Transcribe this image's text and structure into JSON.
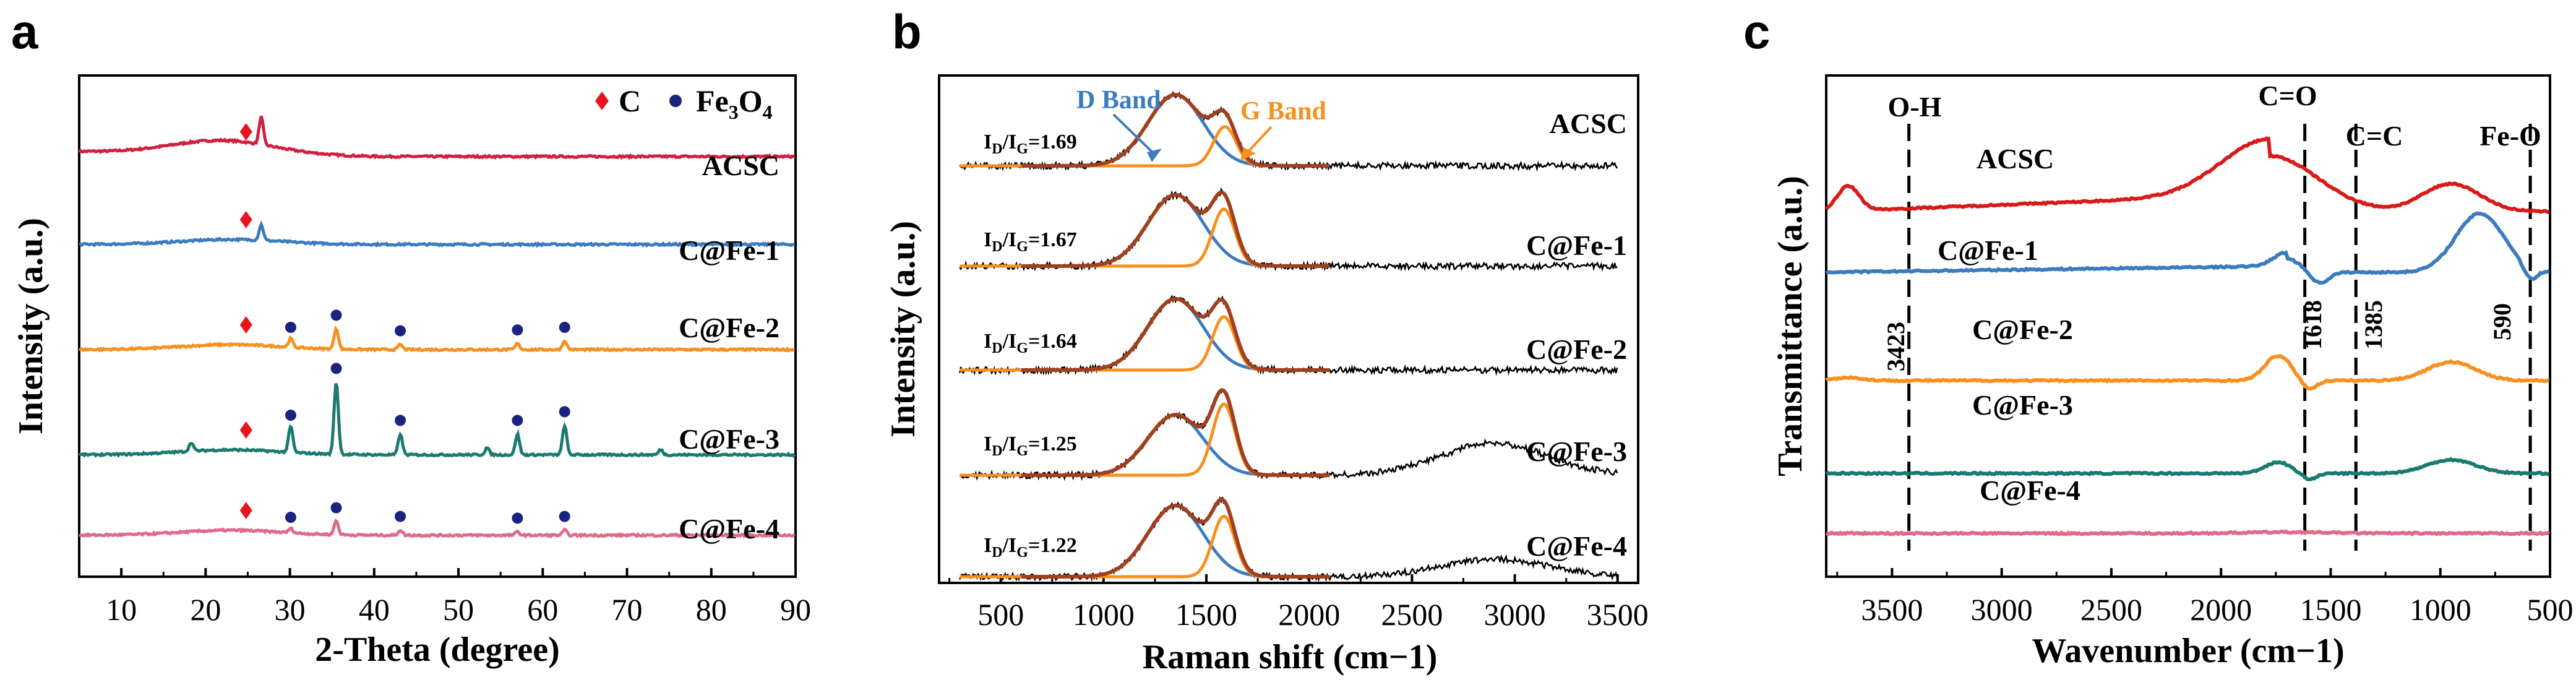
{
  "chart_data": [
    {
      "panel": "a",
      "type": "line",
      "xlabel": "2-Theta (degree)",
      "ylabel": "Intensity (a.u.)",
      "xlim": [
        5,
        90
      ],
      "xticks": [
        10,
        20,
        30,
        40,
        50,
        60,
        70,
        80,
        90
      ],
      "legend": [
        {
          "label": "C",
          "marker": "diamond",
          "color": "#e8141c"
        },
        {
          "label_main": "Fe",
          "label_sub1": "3",
          "label_mid": "O",
          "label_sub2": "4",
          "marker": "circle",
          "color": "#1a237e"
        }
      ],
      "series": [
        {
          "name": "ACSC",
          "color": "#d0203f",
          "hump": 24,
          "sharp": [
            [
              26.6,
              1.6
            ]
          ],
          "c_marks": [
            24.8
          ],
          "fe_marks": []
        },
        {
          "name": "C@Fe-1",
          "color": "#3b7bbf",
          "hump": 24,
          "sharp": [
            [
              26.6,
              0.9
            ]
          ],
          "c_marks": [
            24.8
          ],
          "fe_marks": []
        },
        {
          "name": "C@Fe-2",
          "color": "#f7901e",
          "hump": 24,
          "sharp": [
            [
              30.1,
              0.5
            ],
            [
              35.5,
              1.2
            ],
            [
              43.1,
              0.3
            ],
            [
              57.0,
              0.35
            ],
            [
              62.6,
              0.5
            ]
          ],
          "c_marks": [
            24.8
          ],
          "fe_marks": [
            30.1,
            35.5,
            43.1,
            57.0,
            62.6
          ]
        },
        {
          "name": "C@Fe-3",
          "color": "#1a7a70",
          "hump": 24,
          "sharp": [
            [
              18.3,
              0.5
            ],
            [
              30.1,
              1.5
            ],
            [
              35.5,
              4.2
            ],
            [
              43.1,
              1.2
            ],
            [
              53.4,
              0.4
            ],
            [
              57.0,
              1.2
            ],
            [
              62.6,
              1.7
            ],
            [
              74.0,
              0.3
            ]
          ],
          "c_marks": [
            24.8
          ],
          "fe_marks": [
            30.1,
            35.5,
            43.1,
            57.0,
            62.6
          ]
        },
        {
          "name": "C@Fe-4",
          "color": "#e06a87",
          "hump": 24,
          "sharp": [
            [
              30.1,
              0.25
            ],
            [
              35.5,
              0.8
            ],
            [
              43.1,
              0.3
            ],
            [
              57.0,
              0.2
            ],
            [
              62.6,
              0.3
            ]
          ],
          "c_marks": [
            24.8
          ],
          "fe_marks": [
            30.1,
            35.5,
            43.1,
            57.0,
            62.6
          ]
        }
      ]
    },
    {
      "panel": "b",
      "type": "line",
      "xlabel": "Raman shift (cm−1)",
      "ylabel": "Intensity (a.u.)",
      "xlim": [
        200,
        3600
      ],
      "xticks": [
        500,
        1000,
        1500,
        2000,
        2500,
        3000,
        3500
      ],
      "band_labels": {
        "d": "D Band",
        "g": "G Band",
        "d_color": "#3b7bbf",
        "g_color": "#f7901e"
      },
      "ratio_prefix": "I",
      "ratio_sub_d": "D",
      "ratio_sub_g": "G",
      "fit_colors": {
        "d": "#3b7bbf",
        "g": "#f7901e",
        "sum": "#a0401f",
        "raw": "#000000"
      },
      "series": [
        {
          "name": "ACSC",
          "ratio": "=1.69",
          "d_center": 1350,
          "d_height": 1.0,
          "g_center": 1590,
          "g_height": 0.55,
          "broad": 0
        },
        {
          "name": "C@Fe-1",
          "ratio": "=1.67",
          "d_center": 1350,
          "d_height": 1.0,
          "g_center": 1585,
          "g_height": 0.8,
          "broad": 0
        },
        {
          "name": "C@Fe-2",
          "ratio": "=1.64",
          "d_center": 1350,
          "d_height": 1.0,
          "g_center": 1585,
          "g_height": 0.75,
          "broad": 0
        },
        {
          "name": "C@Fe-3",
          "ratio": "=1.25",
          "d_center": 1350,
          "d_height": 0.85,
          "g_center": 1585,
          "g_height": 1.0,
          "broad": 0.45
        },
        {
          "name": "C@Fe-4",
          "ratio": "=1.22",
          "d_center": 1350,
          "d_height": 1.0,
          "g_center": 1585,
          "g_height": 0.85,
          "broad": 0.25
        }
      ]
    },
    {
      "panel": "c",
      "type": "line",
      "xlabel": "Wavenumber (cm−1)",
      "ylabel": "Transmittance (a.u.)",
      "xlim": [
        3800,
        500
      ],
      "xticks": [
        3500,
        3000,
        2500,
        2000,
        1500,
        1000,
        500
      ],
      "peaks": [
        {
          "label": "O-H",
          "wavenumber": "3423",
          "x": 3423
        },
        {
          "label": "C=O",
          "wavenumber": "1618",
          "x": 1618
        },
        {
          "label": "C=C",
          "wavenumber": "1385",
          "x": 1385
        },
        {
          "label": "Fe-O",
          "wavenumber": "590",
          "x": 590
        }
      ],
      "series": [
        {
          "name": "ACSC",
          "color": "#d81a1a"
        },
        {
          "name": "C@Fe-1",
          "color": "#3b7bbf"
        },
        {
          "name": "C@Fe-2",
          "color": "#f7901e"
        },
        {
          "name": "C@Fe-3",
          "color": "#1a7a70"
        },
        {
          "name": "C@Fe-4",
          "color": "#e06a87"
        }
      ]
    }
  ],
  "panel_letters": {
    "a": "a",
    "b": "b",
    "c": "c"
  }
}
